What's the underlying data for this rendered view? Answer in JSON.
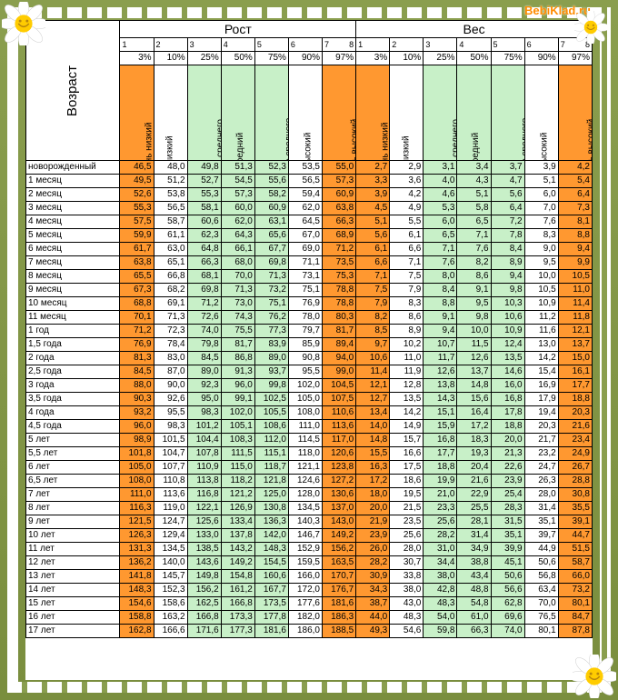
{
  "watermark": "BebiKlad.ru",
  "section_height": "Рост",
  "section_weight": "Вес",
  "age_header": "Возраст",
  "col_idx": [
    "1",
    "2",
    "3",
    "4",
    "5",
    "6",
    "7",
    "8"
  ],
  "col_pct": [
    "3%",
    "10%",
    "25%",
    "50%",
    "75%",
    "90%",
    "97%"
  ],
  "col_labels": [
    "очень низкий",
    "низкий",
    "ниже среднего",
    "средний",
    "выше среднего",
    "высокий",
    "очень высокий"
  ],
  "col_bg": [
    "bg-or",
    "",
    "bg-gr",
    "bg-gr",
    "bg-gr",
    "",
    "bg-or"
  ],
  "ages": [
    "новорожденный",
    "1 месяц",
    "2 месяц",
    "3 месяц",
    "4 месяц",
    "5 месяц",
    "6 месяц",
    "7 месяц",
    "8 месяц",
    "9 месяц",
    "10 месяц",
    "11 месяц",
    "1 год",
    "1,5 года",
    "2 года",
    "2,5 года",
    "3 года",
    "3,5 года",
    "4 года",
    "4,5 года",
    "5 лет",
    "5,5 лет",
    "6 лет",
    "6,5 лет",
    "7 лет",
    "8 лет",
    "9 лет",
    "10 лет",
    "11 лет",
    "12 лет",
    "13 лет",
    "14 лет",
    "15 лет",
    "16 лет",
    "17 лет"
  ],
  "height": [
    [
      "46,5",
      "48,0",
      "49,8",
      "51,3",
      "52,3",
      "53,5",
      "55,0"
    ],
    [
      "49,5",
      "51,2",
      "52,7",
      "54,5",
      "55,6",
      "56,5",
      "57,3"
    ],
    [
      "52,6",
      "53,8",
      "55,3",
      "57,3",
      "58,2",
      "59,4",
      "60,9"
    ],
    [
      "55,3",
      "56,5",
      "58,1",
      "60,0",
      "60,9",
      "62,0",
      "63,8"
    ],
    [
      "57,5",
      "58,7",
      "60,6",
      "62,0",
      "63,1",
      "64,5",
      "66,3"
    ],
    [
      "59,9",
      "61,1",
      "62,3",
      "64,3",
      "65,6",
      "67,0",
      "68,9"
    ],
    [
      "61,7",
      "63,0",
      "64,8",
      "66,1",
      "67,7",
      "69,0",
      "71,2"
    ],
    [
      "63,8",
      "65,1",
      "66,3",
      "68,0",
      "69,8",
      "71,1",
      "73,5"
    ],
    [
      "65,5",
      "66,8",
      "68,1",
      "70,0",
      "71,3",
      "73,1",
      "75,3"
    ],
    [
      "67,3",
      "68,2",
      "69,8",
      "71,3",
      "73,2",
      "75,1",
      "78,8"
    ],
    [
      "68,8",
      "69,1",
      "71,2",
      "73,0",
      "75,1",
      "76,9",
      "78,8"
    ],
    [
      "70,1",
      "71,3",
      "72,6",
      "74,3",
      "76,2",
      "78,0",
      "80,3"
    ],
    [
      "71,2",
      "72,3",
      "74,0",
      "75,5",
      "77,3",
      "79,7",
      "81,7"
    ],
    [
      "76,9",
      "78,4",
      "79,8",
      "81,7",
      "83,9",
      "85,9",
      "89,4"
    ],
    [
      "81,3",
      "83,0",
      "84,5",
      "86,8",
      "89,0",
      "90,8",
      "94,0"
    ],
    [
      "84,5",
      "87,0",
      "89,0",
      "91,3",
      "93,7",
      "95,5",
      "99,0"
    ],
    [
      "88,0",
      "90,0",
      "92,3",
      "96,0",
      "99,8",
      "102,0",
      "104,5"
    ],
    [
      "90,3",
      "92,6",
      "95,0",
      "99,1",
      "102,5",
      "105,0",
      "107,5"
    ],
    [
      "93,2",
      "95,5",
      "98,3",
      "102,0",
      "105,5",
      "108,0",
      "110,6"
    ],
    [
      "96,0",
      "98,3",
      "101,2",
      "105,1",
      "108,6",
      "111,0",
      "113,6"
    ],
    [
      "98,9",
      "101,5",
      "104,4",
      "108,3",
      "112,0",
      "114,5",
      "117,0"
    ],
    [
      "101,8",
      "104,7",
      "107,8",
      "111,5",
      "115,1",
      "118,0",
      "120,6"
    ],
    [
      "105,0",
      "107,7",
      "110,9",
      "115,0",
      "118,7",
      "121,1",
      "123,8"
    ],
    [
      "108,0",
      "110,8",
      "113,8",
      "118,2",
      "121,8",
      "124,6",
      "127,2"
    ],
    [
      "111,0",
      "113,6",
      "116,8",
      "121,2",
      "125,0",
      "128,0",
      "130,6"
    ],
    [
      "116,3",
      "119,0",
      "122,1",
      "126,9",
      "130,8",
      "134,5",
      "137,0"
    ],
    [
      "121,5",
      "124,7",
      "125,6",
      "133,4",
      "136,3",
      "140,3",
      "143,0"
    ],
    [
      "126,3",
      "129,4",
      "133,0",
      "137,8",
      "142,0",
      "146,7",
      "149,2"
    ],
    [
      "131,3",
      "134,5",
      "138,5",
      "143,2",
      "148,3",
      "152,9",
      "156,2"
    ],
    [
      "136,2",
      "140,0",
      "143,6",
      "149,2",
      "154,5",
      "159,5",
      "163,5"
    ],
    [
      "141,8",
      "145,7",
      "149,8",
      "154,8",
      "160,6",
      "166,0",
      "170,7"
    ],
    [
      "148,3",
      "152,3",
      "156,2",
      "161,2",
      "167,7",
      "172,0",
      "176,7"
    ],
    [
      "154,6",
      "158,6",
      "162,5",
      "166,8",
      "173,5",
      "177,6",
      "181,6"
    ],
    [
      "158,8",
      "163,2",
      "166,8",
      "173,3",
      "177,8",
      "182,0",
      "186,3"
    ],
    [
      "162,8",
      "166,6",
      "171,6",
      "177,3",
      "181,6",
      "186,0",
      "188,5"
    ]
  ],
  "weight": [
    [
      "2,7",
      "2,9",
      "3,1",
      "3,4",
      "3,7",
      "3,9",
      "4,2"
    ],
    [
      "3,3",
      "3,6",
      "4,0",
      "4,3",
      "4,7",
      "5,1",
      "5,4"
    ],
    [
      "3,9",
      "4,2",
      "4,6",
      "5,1",
      "5,6",
      "6,0",
      "6,4"
    ],
    [
      "4,5",
      "4,9",
      "5,3",
      "5,8",
      "6,4",
      "7,0",
      "7,3"
    ],
    [
      "5,1",
      "5,5",
      "6,0",
      "6,5",
      "7,2",
      "7,6",
      "8,1"
    ],
    [
      "5,6",
      "6,1",
      "6,5",
      "7,1",
      "7,8",
      "8,3",
      "8,8"
    ],
    [
      "6,1",
      "6,6",
      "7,1",
      "7,6",
      "8,4",
      "9,0",
      "9,4"
    ],
    [
      "6,6",
      "7,1",
      "7,6",
      "8,2",
      "8,9",
      "9,5",
      "9,9"
    ],
    [
      "7,1",
      "7,5",
      "8,0",
      "8,6",
      "9,4",
      "10,0",
      "10,5"
    ],
    [
      "7,5",
      "7,9",
      "8,4",
      "9,1",
      "9,8",
      "10,5",
      "11,0"
    ],
    [
      "7,9",
      "8,3",
      "8,8",
      "9,5",
      "10,3",
      "10,9",
      "11,4"
    ],
    [
      "8,2",
      "8,6",
      "9,1",
      "9,8",
      "10,6",
      "11,2",
      "11,8"
    ],
    [
      "8,5",
      "8,9",
      "9,4",
      "10,0",
      "10,9",
      "11,6",
      "12,1"
    ],
    [
      "9,7",
      "10,2",
      "10,7",
      "11,5",
      "12,4",
      "13,0",
      "13,7"
    ],
    [
      "10,6",
      "11,0",
      "11,7",
      "12,6",
      "13,5",
      "14,2",
      "15,0"
    ],
    [
      "11,4",
      "11,9",
      "12,6",
      "13,7",
      "14,6",
      "15,4",
      "16,1"
    ],
    [
      "12,1",
      "12,8",
      "13,8",
      "14,8",
      "16,0",
      "16,9",
      "17,7"
    ],
    [
      "12,7",
      "13,5",
      "14,3",
      "15,6",
      "16,8",
      "17,9",
      "18,8"
    ],
    [
      "13,4",
      "14,2",
      "15,1",
      "16,4",
      "17,8",
      "19,4",
      "20,3"
    ],
    [
      "14,0",
      "14,9",
      "15,9",
      "17,2",
      "18,8",
      "20,3",
      "21,6"
    ],
    [
      "14,8",
      "15,7",
      "16,8",
      "18,3",
      "20,0",
      "21,7",
      "23,4"
    ],
    [
      "15,5",
      "16,6",
      "17,7",
      "19,3",
      "21,3",
      "23,2",
      "24,9"
    ],
    [
      "16,3",
      "17,5",
      "18,8",
      "20,4",
      "22,6",
      "24,7",
      "26,7"
    ],
    [
      "17,2",
      "18,6",
      "19,9",
      "21,6",
      "23,9",
      "26,3",
      "28,8"
    ],
    [
      "18,0",
      "19,5",
      "21,0",
      "22,9",
      "25,4",
      "28,0",
      "30,8"
    ],
    [
      "20,0",
      "21,5",
      "23,3",
      "25,5",
      "28,3",
      "31,4",
      "35,5"
    ],
    [
      "21,9",
      "23,5",
      "25,6",
      "28,1",
      "31,5",
      "35,1",
      "39,1"
    ],
    [
      "23,9",
      "25,6",
      "28,2",
      "31,4",
      "35,1",
      "39,7",
      "44,7"
    ],
    [
      "26,0",
      "28,0",
      "31,0",
      "34,9",
      "39,9",
      "44,9",
      "51,5"
    ],
    [
      "28,2",
      "30,7",
      "34,4",
      "38,8",
      "45,1",
      "50,6",
      "58,7"
    ],
    [
      "30,9",
      "33,8",
      "38,0",
      "43,4",
      "50,6",
      "56,8",
      "66,0"
    ],
    [
      "34,3",
      "38,0",
      "42,8",
      "48,8",
      "56,6",
      "63,4",
      "73,2"
    ],
    [
      "38,7",
      "43,0",
      "48,3",
      "54,8",
      "62,8",
      "70,0",
      "80,1"
    ],
    [
      "44,0",
      "48,3",
      "54,0",
      "61,0",
      "69,6",
      "76,5",
      "84,7"
    ],
    [
      "49,3",
      "54,6",
      "59,8",
      "66,3",
      "74,0",
      "80,1",
      "87,8"
    ]
  ]
}
